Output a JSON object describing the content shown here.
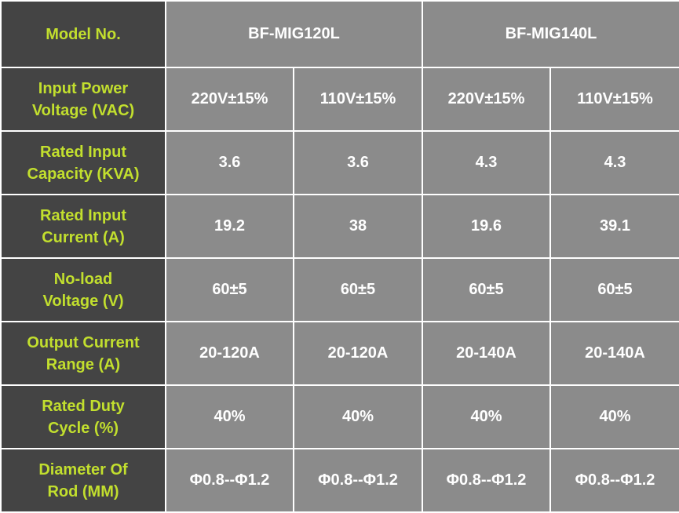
{
  "header": {
    "label": "Model No.",
    "models": [
      "BF-MIG120L",
      "BF-MIG140L"
    ]
  },
  "rows": [
    {
      "label": "Input Power\nVoltage (VAC)",
      "values": [
        "220V±15%",
        "110V±15%",
        "220V±15%",
        "110V±15%"
      ]
    },
    {
      "label": "Rated Input\nCapacity (KVA)",
      "values": [
        "3.6",
        "3.6",
        "4.3",
        "4.3"
      ]
    },
    {
      "label": "Rated Input\nCurrent (A)",
      "values": [
        "19.2",
        "38",
        "19.6",
        "39.1"
      ]
    },
    {
      "label": "No-load\nVoltage (V)",
      "values": [
        "60±5",
        "60±5",
        "60±5",
        "60±5"
      ]
    },
    {
      "label": "Output Current\nRange (A)",
      "values": [
        "20-120A",
        "20-120A",
        "20-140A",
        "20-140A"
      ]
    },
    {
      "label": "Rated Duty\nCycle (%)",
      "values": [
        "40%",
        "40%",
        "40%",
        "40%"
      ]
    },
    {
      "label": "Diameter Of\nRod (MM)",
      "values": [
        "Φ0.8--Φ1.2",
        "Φ0.8--Φ1.2",
        "Φ0.8--Φ1.2",
        "Φ0.8--Φ1.2"
      ]
    }
  ],
  "colors": {
    "label_bg": "#444444",
    "label_text": "#c2df2e",
    "value_bg": "#8b8b8b",
    "value_text": "#ffffff",
    "border": "#ffffff"
  }
}
